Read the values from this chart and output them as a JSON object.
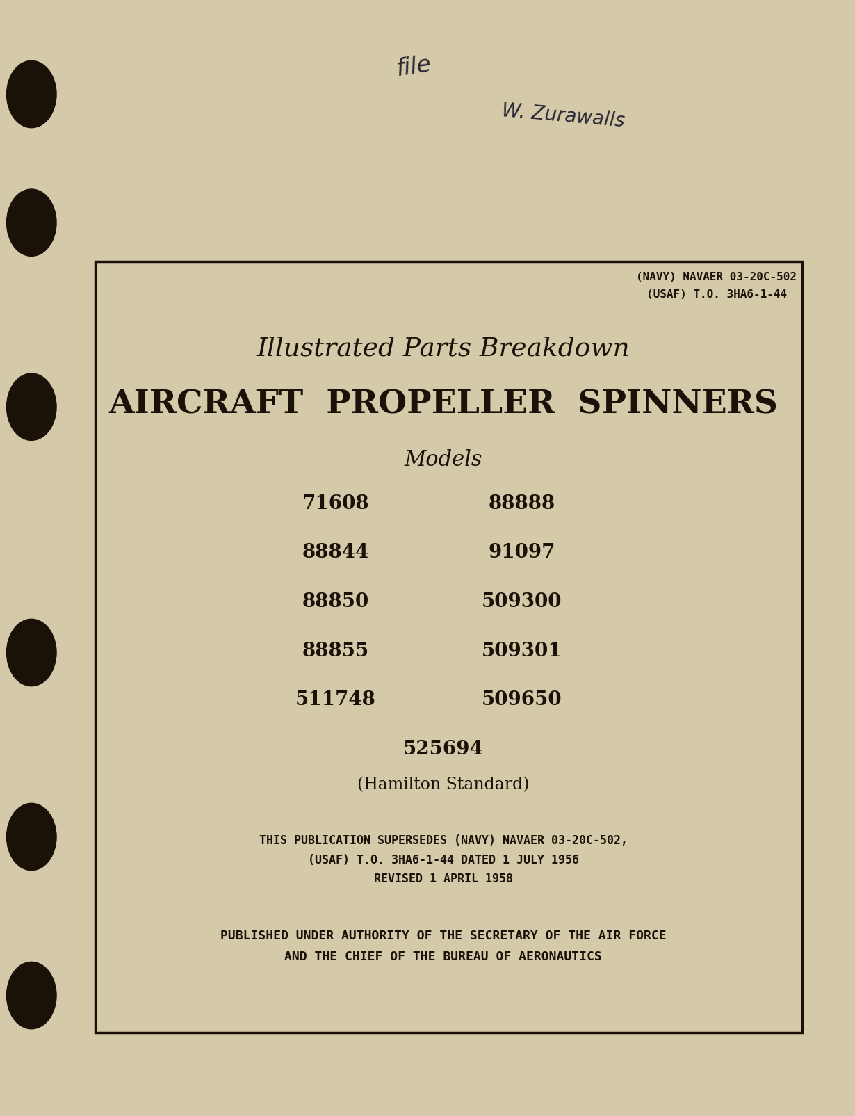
{
  "bg_color": "#d4c9a8",
  "box_bg": "#d4c9a8",
  "box_border_color": "#1a1208",
  "text_color": "#1a1208",
  "dot_color": "#1a1208",
  "header_line1": "(NAVY) NAVAER 03-20C-502",
  "header_line2": "(USAF) T.O. 3HA6-1-44",
  "title1": "Illustrated Parts Breakdown",
  "title2": "AIRCRAFT  PROPELLER  SPINNERS",
  "models_label": "Models",
  "models_left": [
    "71608",
    "88844",
    "88850",
    "88855",
    "511748"
  ],
  "models_right": [
    "88888",
    "91097",
    "509300",
    "509301",
    "509650"
  ],
  "model_center": "525694",
  "manufacturer": "(Hamilton Standard)",
  "supersedes_line1": "THIS PUBLICATION SUPERSEDES (NAVY) NAVAER 03-20C-502,",
  "supersedes_line2": "(USAF) T.O. 3HA6-1-44 DATED 1 JULY 1956",
  "supersedes_line3": "REVISED 1 APRIL 1958",
  "authority_line1": "PUBLISHED UNDER AUTHORITY OF THE SECRETARY OF THE AIR FORCE",
  "authority_line2": "AND THE CHIEF OF THE BUREAU OF AERONAUTICS",
  "handwriting1": "file",
  "handwriting2": "W. Zurawalls"
}
